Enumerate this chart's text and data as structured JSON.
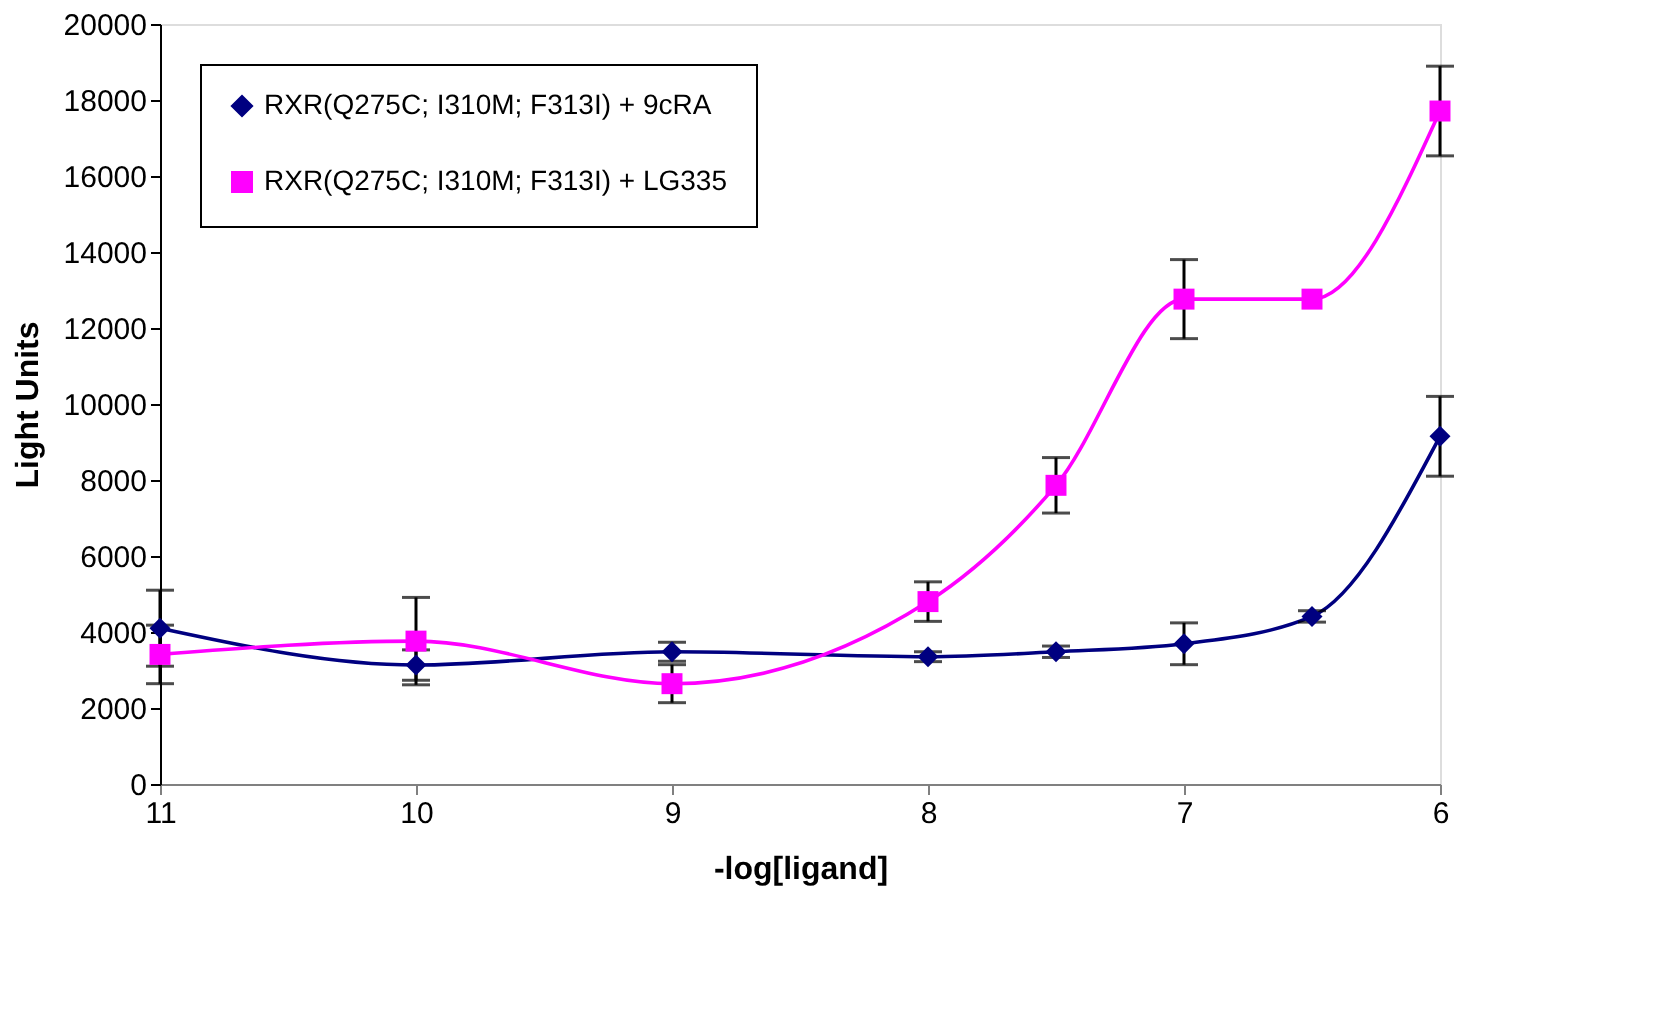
{
  "chart_data": {
    "type": "line",
    "xlabel": "-log[ligand]",
    "ylabel": "Light Units",
    "x": [
      11,
      10,
      9,
      8,
      7.5,
      7,
      6.5,
      6
    ],
    "xlim": [
      11,
      6
    ],
    "xticks": [
      11,
      10,
      9,
      8,
      7,
      6
    ],
    "ylim": [
      0,
      20000
    ],
    "yticks": [
      0,
      2000,
      4000,
      6000,
      8000,
      10000,
      12000,
      14000,
      16000,
      18000,
      20000
    ],
    "grid": false,
    "legend": "top left",
    "line_style": "solid",
    "series": [
      {
        "name": "RXR(Q275C; I310M; F313I) + 9cRA",
        "color": "#000080",
        "marker": "diamond",
        "values": [
          4100,
          3130,
          3480,
          3350,
          3480,
          3690,
          4410,
          9150
        ],
        "errors": [
          1000,
          400,
          250,
          130,
          150,
          550,
          150,
          1050
        ]
      },
      {
        "name": "RXR(Q275C; I310M; F313I) + LG335",
        "color": "#ff00ff",
        "marker": "square",
        "values": [
          3410,
          3760,
          2640,
          4800,
          7860,
          12760,
          12760,
          17710
        ],
        "errors": [
          770,
          1150,
          500,
          520,
          730,
          1040,
          null,
          1180
        ]
      }
    ]
  }
}
